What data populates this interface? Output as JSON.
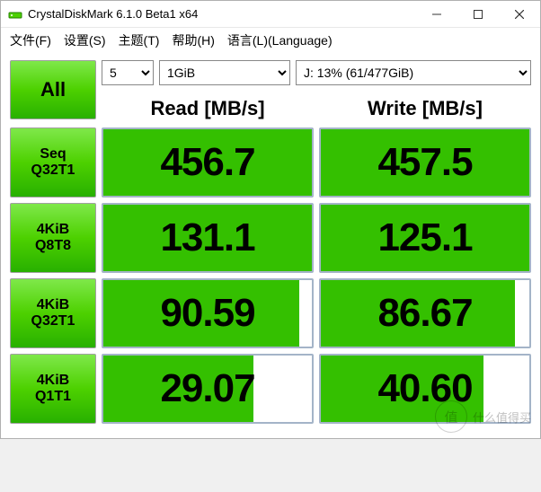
{
  "window": {
    "title": "CrystalDiskMark 6.1.0 Beta1 x64"
  },
  "menu": {
    "file": "文件(F)",
    "settings": "设置(S)",
    "theme": "主题(T)",
    "help": "帮助(H)",
    "language": "语言(L)(Language)"
  },
  "controls": {
    "all_label": "All",
    "runs_value": "5",
    "size_value": "1GiB",
    "drive_value": "J: 13% (61/477GiB)"
  },
  "headers": {
    "read": "Read [MB/s]",
    "write": "Write [MB/s]"
  },
  "rows": [
    {
      "label": "Seq\nQ32T1",
      "read": "456.7",
      "write": "457.5",
      "read_fill": "100%",
      "write_fill": "100%"
    },
    {
      "label": "4KiB\nQ8T8",
      "read": "131.1",
      "write": "125.1",
      "read_fill": "100%",
      "write_fill": "100%"
    },
    {
      "label": "4KiB\nQ32T1",
      "read": "90.59",
      "write": "86.67",
      "read_fill": "94%",
      "write_fill": "93%"
    },
    {
      "label": "4KiB\nQ1T1",
      "read": "29.07",
      "write": "40.60",
      "read_fill": "72%",
      "write_fill": "78%"
    }
  ],
  "colors": {
    "button_grad_top": "#7fe84a",
    "button_grad_mid": "#4dd100",
    "button_grad_bot": "#28b000",
    "value_fill": "#34c000",
    "value_border": "#a4b4c8",
    "window_bg": "#ffffff"
  },
  "watermark": {
    "circle": "值",
    "text": "什么值得买"
  }
}
